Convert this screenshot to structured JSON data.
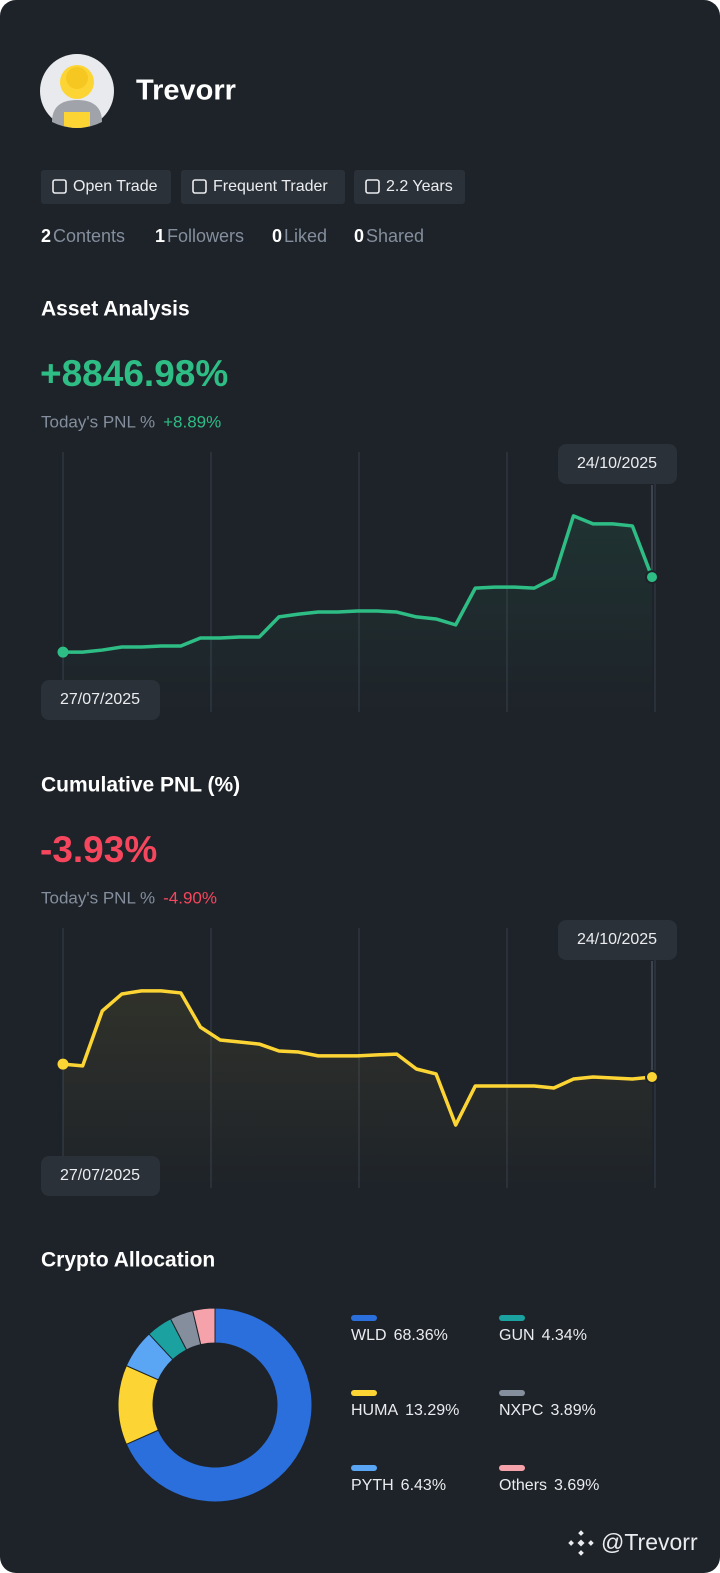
{
  "profile": {
    "name": "Trevorr",
    "badges": [
      "Open Trade",
      "Frequent Trader",
      "2.2 Years"
    ],
    "stats": [
      {
        "value": "2",
        "label": "Contents"
      },
      {
        "value": "1",
        "label": "Followers"
      },
      {
        "value": "0",
        "label": "Liked"
      },
      {
        "value": "0",
        "label": "Shared"
      }
    ]
  },
  "chart_data": [
    {
      "type": "line",
      "title": "Asset Analysis",
      "headline": "+8846.98%",
      "today_label": "Today's PNL %",
      "today_value": "+8.89%",
      "color": "#2ebd85",
      "headline_color": "#2ebd85",
      "categories": [
        "27/07/2025",
        null,
        null,
        null,
        null,
        null,
        null,
        null,
        null,
        null,
        null,
        null,
        null,
        null,
        null,
        null,
        null,
        null,
        null,
        null,
        null,
        null,
        null,
        null,
        null,
        null,
        null,
        null,
        null,
        null,
        "24/10/2025"
      ],
      "values": [
        23.3,
        23.3,
        24.1,
        25.3,
        25.3,
        25.7,
        25.7,
        28.8,
        28.8,
        29.2,
        29.2,
        37.0,
        38.1,
        38.9,
        38.9,
        39.3,
        39.3,
        38.9,
        37.0,
        36.2,
        33.9,
        48.2,
        48.6,
        48.6,
        48.2,
        52.1,
        76.3,
        73.2,
        73.2,
        72.4,
        52.5
      ],
      "ylim": [
        0,
        100
      ],
      "grid": true
    },
    {
      "type": "line",
      "title": "Cumulative PNL (%)",
      "headline": "-3.93%",
      "today_label": "Today's PNL %",
      "today_value": "-4.90%",
      "color": "#fcd535",
      "headline_color": "#f6465d",
      "categories": [
        "27/07/2025",
        null,
        null,
        null,
        null,
        null,
        null,
        null,
        null,
        null,
        null,
        null,
        null,
        null,
        null,
        null,
        null,
        null,
        null,
        null,
        null,
        null,
        null,
        null,
        null,
        null,
        null,
        null,
        null,
        null,
        "24/10/2025"
      ],
      "values": [
        48.2,
        47.5,
        68.9,
        75.5,
        76.7,
        76.7,
        75.9,
        62.6,
        57.6,
        56.8,
        56.0,
        53.3,
        52.9,
        51.4,
        51.4,
        51.4,
        51.8,
        52.1,
        46.3,
        44.4,
        24.5,
        39.7,
        39.7,
        39.7,
        39.7,
        38.9,
        42.4,
        43.2,
        42.8,
        42.4,
        43.2
      ],
      "ylim": [
        0,
        100
      ],
      "grid": true
    },
    {
      "type": "pie",
      "title": "Crypto Allocation",
      "categories": [
        "WLD",
        "HUMA",
        "PYTH",
        "GUN",
        "NXPC",
        "Others"
      ],
      "values": [
        68.36,
        13.29,
        6.43,
        4.34,
        3.89,
        3.69
      ],
      "value_labels": [
        "68.36%",
        "13.29%",
        "6.43%",
        "4.34%",
        "3.89%",
        "3.69%"
      ],
      "colors": [
        "#2a6fdb",
        "#fcd535",
        "#5aa6f5",
        "#1ba2a0",
        "#848e9c",
        "#f6a2aa"
      ]
    }
  ],
  "footer": {
    "handle": "@Trevorr"
  }
}
